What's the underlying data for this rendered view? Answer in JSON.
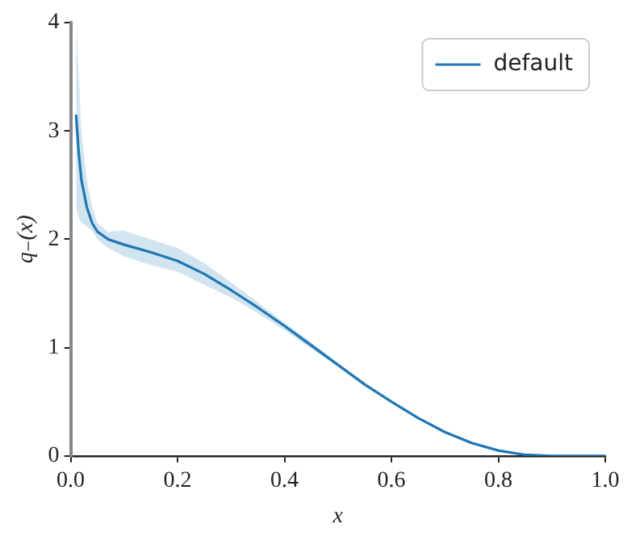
{
  "chart_data": {
    "type": "line",
    "xlabel": "x",
    "ylabel": "q₋(x)",
    "xlim": [
      0,
      1
    ],
    "ylim": [
      0,
      4
    ],
    "xticks": [
      {
        "value": 0,
        "label": "0.0"
      },
      {
        "value": 0.2,
        "label": "0.2"
      },
      {
        "value": 0.4,
        "label": "0.4"
      },
      {
        "value": 0.6,
        "label": "0.6"
      },
      {
        "value": 0.8,
        "label": "0.8"
      },
      {
        "value": 1,
        "label": "1.0"
      }
    ],
    "yticks": [
      0,
      1,
      2,
      3,
      4
    ],
    "grid": false,
    "legend": "top right",
    "marker": "none",
    "line_style": "solid",
    "series": [
      {
        "name": "default",
        "color": "#1f77b4",
        "x": [
          0.01,
          0.015,
          0.02,
          0.03,
          0.04,
          0.05,
          0.07,
          0.1,
          0.15,
          0.2,
          0.25,
          0.3,
          0.35,
          0.4,
          0.45,
          0.5,
          0.55,
          0.6,
          0.65,
          0.7,
          0.75,
          0.8,
          0.85,
          0.9,
          0.95,
          1.0
        ],
        "values": [
          3.15,
          2.8,
          2.55,
          2.3,
          2.15,
          2.07,
          2.0,
          1.95,
          1.88,
          1.8,
          1.68,
          1.53,
          1.37,
          1.2,
          1.02,
          0.84,
          0.66,
          0.5,
          0.35,
          0.22,
          0.12,
          0.05,
          0.01,
          0.0,
          0.0,
          0.0
        ],
        "upper": [
          4.0,
          3.5,
          3.0,
          2.55,
          2.3,
          2.15,
          2.07,
          2.08,
          2.0,
          1.92,
          1.78,
          1.6,
          1.42,
          1.23,
          1.05,
          0.86,
          0.68,
          0.51,
          0.36,
          0.23,
          0.13,
          0.06,
          0.02,
          0.0,
          0.0,
          0.0
        ],
        "lower": [
          2.3,
          2.2,
          2.15,
          2.12,
          2.08,
          2.0,
          1.92,
          1.84,
          1.76,
          1.7,
          1.58,
          1.46,
          1.32,
          1.16,
          0.99,
          0.82,
          0.64,
          0.49,
          0.34,
          0.21,
          0.11,
          0.04,
          0.0,
          0.0,
          0.0,
          0.0
        ]
      }
    ]
  }
}
